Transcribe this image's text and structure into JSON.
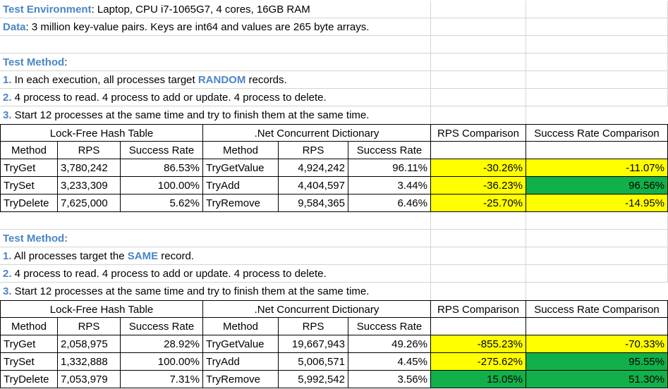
{
  "colors": {
    "label": "#4a86c5",
    "yellow": "#ffff00",
    "green": "#12b04a"
  },
  "env": {
    "label": "Test Environment",
    "text": ": Laptop, CPU i7-1065G7, 4 cores, 16GB RAM"
  },
  "data_line": {
    "label": "Data",
    "text": ": 3 million key-value pairs. Keys are int64 and values are 265 byte arrays."
  },
  "section1": {
    "title": "Test Method",
    "title_suffix": ":",
    "lines": [
      {
        "num": "1.",
        "pre": " In each execution, all processes target ",
        "accent": "RANDOM",
        "post": " records."
      },
      {
        "num": "2.",
        "pre": " 4 process to read. 4 process to add or update. 4 process to delete.",
        "accent": "",
        "post": ""
      },
      {
        "num": "3.",
        "pre": " Start 12 processes at the same time and try to finish them at the same time.",
        "accent": "",
        "post": ""
      }
    ],
    "table": {
      "group_lock": "Lock-Free Hash Table",
      "group_net": ".Net Concurrent Dictionary",
      "group_rps": "RPS Comparison",
      "group_sr": "Success Rate Comparison",
      "headers": [
        "Method",
        "RPS",
        "Success Rate",
        "Method",
        "RPS",
        "Success Rate"
      ],
      "rows": [
        {
          "m1": "TryGet",
          "rps1": "3,780,242",
          "sr1": "86.53%",
          "m2": "TryGetValue",
          "rps2": "4,924,242",
          "sr2": "96.11%",
          "rpsc": "-30.26%",
          "src": "-11.07%",
          "rpsc_color": "yellow",
          "src_color": "yellow"
        },
        {
          "m1": "TrySet",
          "rps1": "3,233,309",
          "sr1": "100.00%",
          "m2": "TryAdd",
          "rps2": "4,404,597",
          "sr2": "3.44%",
          "rpsc": "-36.23%",
          "src": "96.56%",
          "rpsc_color": "yellow",
          "src_color": "green"
        },
        {
          "m1": "TryDelete",
          "rps1": "7,625,000",
          "sr1": "5.62%",
          "m2": "TryRemove",
          "rps2": "9,584,365",
          "sr2": "6.46%",
          "rpsc": "-25.70%",
          "src": "-14.95%",
          "rpsc_color": "yellow",
          "src_color": "yellow"
        }
      ]
    }
  },
  "section2": {
    "title": "Test Method:",
    "lines": [
      {
        "num": "1.",
        "pre": " All processes target the ",
        "accent": "SAME",
        "post": " record."
      },
      {
        "num": "2.",
        "pre": " 4 process to read. 4 process to add or update. 4 process to delete.",
        "accent": "",
        "post": ""
      },
      {
        "num": "3.",
        "pre": " Start 12 processes at the same time and try to finish them at the same time.",
        "accent": "",
        "post": ""
      }
    ],
    "table": {
      "group_lock": "Lock-Free Hash Table",
      "group_net": ".Net Concurrent Dictionary",
      "group_rps": "RPS Comparison",
      "group_sr": "Success Rate Comparison",
      "headers": [
        "Method",
        "RPS",
        "Success Rate",
        "Method",
        "RPS",
        "Success Rate"
      ],
      "rows": [
        {
          "m1": "TryGet",
          "rps1": "2,058,975",
          "sr1": "28.92%",
          "m2": "TryGetValue",
          "rps2": "19,667,943",
          "sr2": "49.26%",
          "rpsc": "-855.23%",
          "src": "-70.33%",
          "rpsc_color": "yellow",
          "src_color": "yellow"
        },
        {
          "m1": "TrySet",
          "rps1": "1,332,888",
          "sr1": "100.00%",
          "m2": "TryAdd",
          "rps2": "5,006,571",
          "sr2": "4.45%",
          "rpsc": "-275.62%",
          "src": "95.55%",
          "rpsc_color": "yellow",
          "src_color": "green"
        },
        {
          "m1": "TryDelete",
          "rps1": "7,053,979",
          "sr1": "7.31%",
          "m2": "TryRemove",
          "rps2": "5,992,542",
          "sr2": "3.56%",
          "rpsc": "15.05%",
          "src": "51.30%",
          "rpsc_color": "green",
          "src_color": "green"
        }
      ]
    }
  }
}
